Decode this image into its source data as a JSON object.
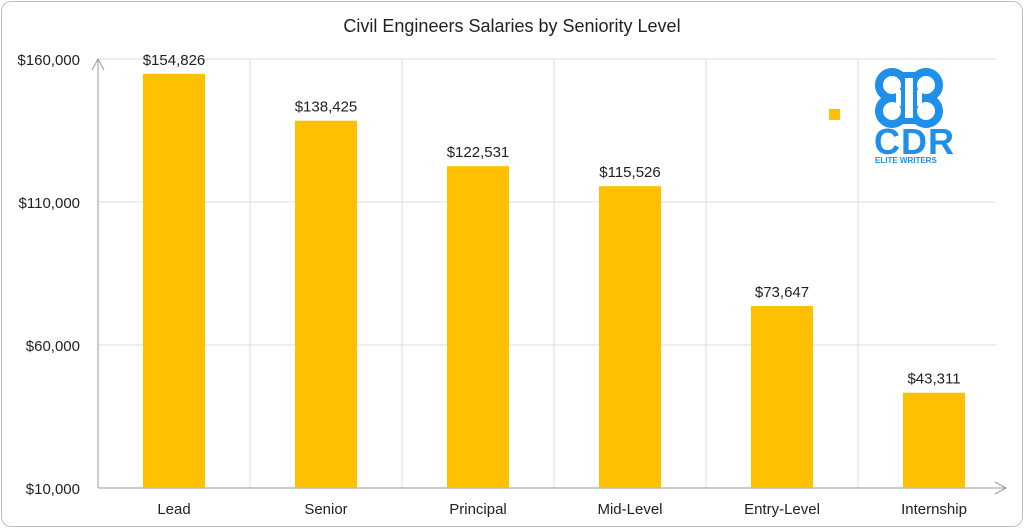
{
  "chart_data": {
    "type": "bar",
    "title": "Civil Engineers Salaries by Seniority Level",
    "xlabel": "",
    "ylabel": "",
    "categories": [
      "Lead",
      "Senior",
      "Principal",
      "Mid-Level",
      "Entry-Level",
      "Internship"
    ],
    "values": [
      154826,
      138425,
      122531,
      115526,
      73647,
      43311
    ],
    "value_labels": [
      "$154,826",
      "$138,425",
      "$122,531",
      "$115,526",
      "$73,647",
      "$43,311"
    ],
    "ylim": [
      10000,
      160000
    ],
    "yticks": [
      10000,
      60000,
      110000,
      160000
    ],
    "ytick_labels": [
      "$10,000",
      "$60,000",
      "$110,000",
      "$160,000"
    ],
    "grid": true,
    "legend": "top-right",
    "bar_color": "#FFC000"
  },
  "logo": {
    "text": "CDR",
    "subtitle": "ELITE WRITERS",
    "color": "#1E8FEA"
  }
}
